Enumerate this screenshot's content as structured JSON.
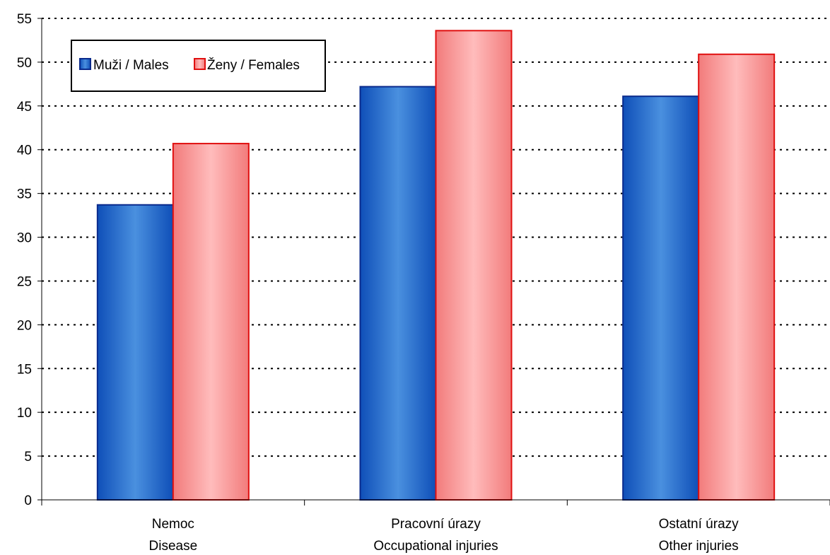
{
  "chart_data": {
    "type": "bar",
    "categories": [
      [
        "Nemoc",
        "Disease"
      ],
      [
        "Pracovní úrazy",
        "Occupational injuries"
      ],
      [
        "Ostatní úrazy",
        "Other injuries"
      ]
    ],
    "series": [
      {
        "name": "Muži / Males",
        "values": [
          33.7,
          47.2,
          46.1
        ],
        "color": "#1a5fc4"
      },
      {
        "name": "Ženy / Females",
        "values": [
          40.7,
          53.6,
          50.9
        ],
        "color": "#f08080"
      }
    ],
    "xlabel": "",
    "ylabel": "",
    "ylim": [
      0,
      55
    ],
    "yticks": [
      0,
      5,
      10,
      15,
      20,
      25,
      30,
      35,
      40,
      45,
      50,
      55
    ],
    "grid": true,
    "legend_position": "top-left"
  }
}
